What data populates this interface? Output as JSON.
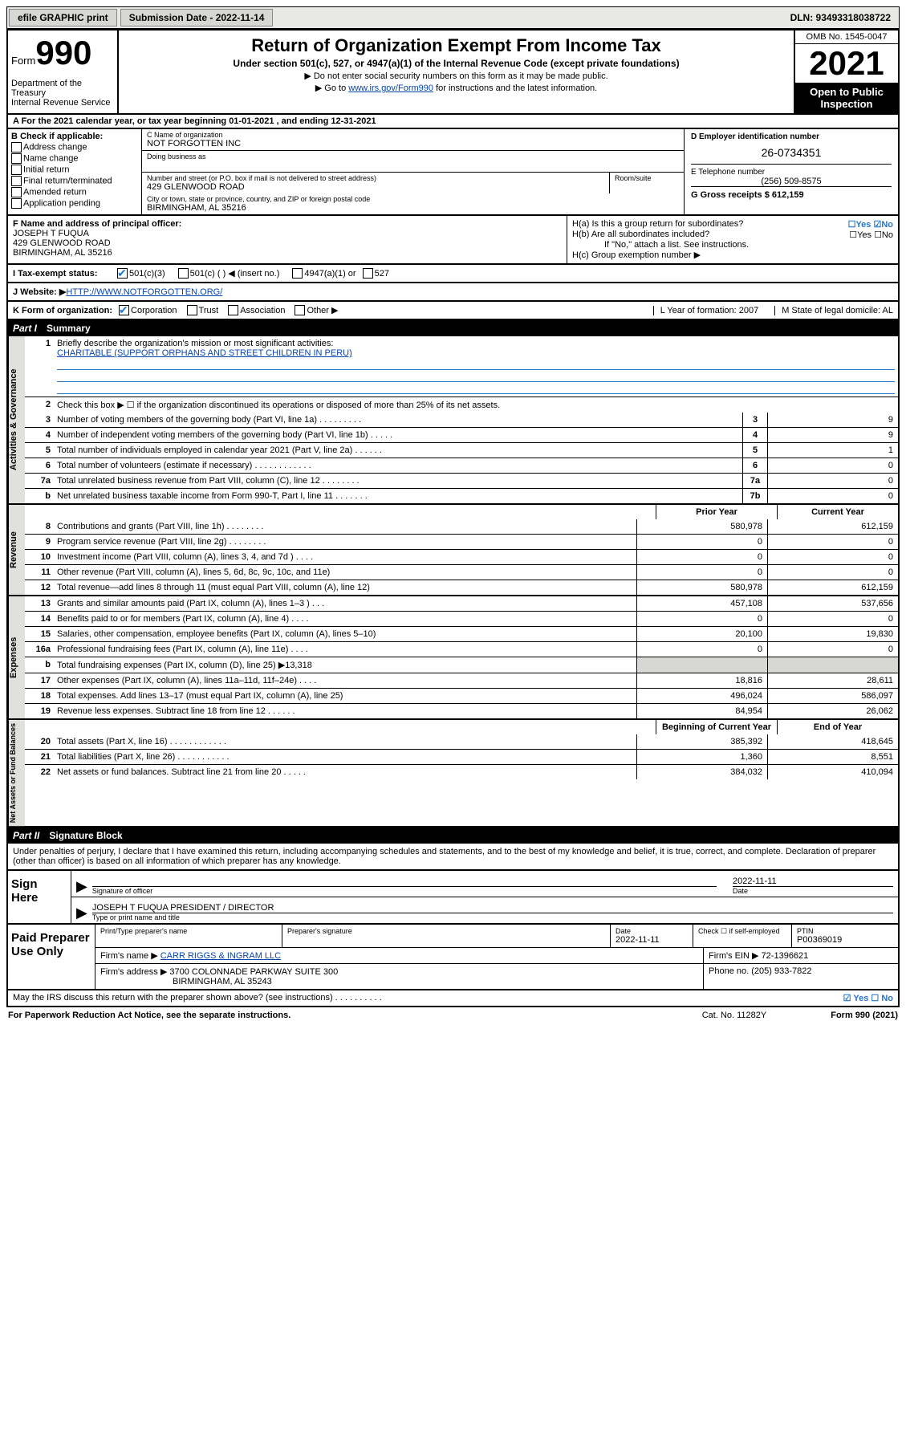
{
  "topbar": {
    "efile": "efile GRAPHIC print",
    "submission_label": "Submission Date - 2022-11-14",
    "dln": "DLN: 93493318038722"
  },
  "header": {
    "form_word": "Form",
    "form_num": "990",
    "dept": "Department of the Treasury\nInternal Revenue Service",
    "title": "Return of Organization Exempt From Income Tax",
    "subtitle": "Under section 501(c), 527, or 4947(a)(1) of the Internal Revenue Code (except private foundations)",
    "note1": "▶ Do not enter social security numbers on this form as it may be made public.",
    "note2_pre": "▶ Go to ",
    "note2_link": "www.irs.gov/Form990",
    "note2_post": " for instructions and the latest information.",
    "omb": "OMB No. 1545-0047",
    "year": "2021",
    "inspect": "Open to Public Inspection"
  },
  "lineA": "A For the 2021 calendar year, or tax year beginning 01-01-2021   , and ending 12-31-2021",
  "colB": {
    "head": "B Check if applicable:",
    "opts": [
      "Address change",
      "Name change",
      "Initial return",
      "Final return/terminated",
      "Amended return",
      "Application pending"
    ]
  },
  "colC": {
    "name_label": "C Name of organization",
    "name": "NOT FORGOTTEN INC",
    "dba_label": "Doing business as",
    "street_label": "Number and street (or P.O. box if mail is not delivered to street address)",
    "room_label": "Room/suite",
    "street": "429 GLENWOOD ROAD",
    "city_label": "City or town, state or province, country, and ZIP or foreign postal code",
    "city": "BIRMINGHAM, AL  35216"
  },
  "colD": {
    "ein_label": "D Employer identification number",
    "ein": "26-0734351",
    "phone_label": "E Telephone number",
    "phone": "(256) 509-8575",
    "gross_label": "G Gross receipts $ ",
    "gross": "612,159"
  },
  "secF": {
    "label": "F Name and address of principal officer:",
    "name": "JOSEPH T FUQUA",
    "addr1": "429 GLENWOOD ROAD",
    "addr2": "BIRMINGHAM, AL  35216",
    "ha": "H(a)  Is this a group return for subordinates?",
    "ha_ans": "☐Yes  ☑No",
    "hb": "H(b)  Are all subordinates included?",
    "hb_ans": "☐Yes  ☐No",
    "hb_note": "If \"No,\" attach a list. See instructions.",
    "hc": "H(c)  Group exemption number ▶"
  },
  "secI": {
    "label": "I   Tax-exempt status:",
    "o1": "501(c)(3)",
    "o2": "501(c) (  ) ◀ (insert no.)",
    "o3": "4947(a)(1) or",
    "o4": "527"
  },
  "secJ": {
    "label": "J   Website: ▶  ",
    "url": "HTTP://WWW.NOTFORGOTTEN.ORG/"
  },
  "secK": {
    "label": "K Form of organization:",
    "o1": "Corporation",
    "o2": "Trust",
    "o3": "Association",
    "o4": "Other ▶",
    "l": "L Year of formation: 2007",
    "m": "M State of legal domicile: AL"
  },
  "part1": {
    "header": "Summary",
    "part_label": "Part I",
    "q1": "Briefly describe the organization's mission or most significant activities:",
    "mission": "CHARITABLE (SUPPORT ORPHANS AND STREET CHILDREN IN PERU)",
    "q2": "Check this box ▶ ☐  if the organization discontinued its operations or disposed of more than 25% of its net assets.",
    "rows_gov": [
      {
        "n": "3",
        "t": "Number of voting members of the governing body (Part VI, line 1a)   .    .    .    .    .    .    .    .    .",
        "b": "3",
        "v": "9"
      },
      {
        "n": "4",
        "t": "Number of independent voting members of the governing body (Part VI, line 1b)   .    .    .    .    .",
        "b": "4",
        "v": "9"
      },
      {
        "n": "5",
        "t": "Total number of individuals employed in calendar year 2021 (Part V, line 2a)   .    .    .    .    .    .",
        "b": "5",
        "v": "1"
      },
      {
        "n": "6",
        "t": "Total number of volunteers (estimate if necessary)   .    .    .    .    .    .    .    .    .    .    .    .",
        "b": "6",
        "v": "0"
      },
      {
        "n": "7a",
        "t": "Total unrelated business revenue from Part VIII, column (C), line 12   .    .    .    .    .    .    .    .",
        "b": "7a",
        "v": "0"
      },
      {
        "n": "b",
        "t": "Net unrelated business taxable income from Form 990-T, Part I, line 11   .    .    .    .    .    .    .",
        "b": "7b",
        "v": "0"
      }
    ],
    "col_headers": {
      "py": "Prior Year",
      "cy": "Current Year"
    },
    "rows_rev": [
      {
        "n": "8",
        "t": "Contributions and grants (Part VIII, line 1h)   .    .    .    .    .    .    .    .",
        "py": "580,978",
        "cy": "612,159"
      },
      {
        "n": "9",
        "t": "Program service revenue (Part VIII, line 2g)   .    .    .    .    .    .    .    .",
        "py": "0",
        "cy": "0"
      },
      {
        "n": "10",
        "t": "Investment income (Part VIII, column (A), lines 3, 4, and 7d )   .    .    .    .",
        "py": "0",
        "cy": "0"
      },
      {
        "n": "11",
        "t": "Other revenue (Part VIII, column (A), lines 5, 6d, 8c, 9c, 10c, and 11e)",
        "py": "0",
        "cy": "0"
      },
      {
        "n": "12",
        "t": "Total revenue—add lines 8 through 11 (must equal Part VIII, column (A), line 12)",
        "py": "580,978",
        "cy": "612,159"
      }
    ],
    "rows_exp": [
      {
        "n": "13",
        "t": "Grants and similar amounts paid (Part IX, column (A), lines 1–3 )   .    .    .",
        "py": "457,108",
        "cy": "537,656"
      },
      {
        "n": "14",
        "t": "Benefits paid to or for members (Part IX, column (A), line 4)   .    .    .    .",
        "py": "0",
        "cy": "0"
      },
      {
        "n": "15",
        "t": "Salaries, other compensation, employee benefits (Part IX, column (A), lines 5–10)",
        "py": "20,100",
        "cy": "19,830"
      },
      {
        "n": "16a",
        "t": "Professional fundraising fees (Part IX, column (A), line 11e)   .    .    .    .",
        "py": "0",
        "cy": "0"
      },
      {
        "n": "b",
        "t": "Total fundraising expenses (Part IX, column (D), line 25) ▶13,318",
        "py": "",
        "cy": "",
        "shade": true
      },
      {
        "n": "17",
        "t": "Other expenses (Part IX, column (A), lines 11a–11d, 11f–24e)   .    .    .    .",
        "py": "18,816",
        "cy": "28,611"
      },
      {
        "n": "18",
        "t": "Total expenses. Add lines 13–17 (must equal Part IX, column (A), line 25)",
        "py": "496,024",
        "cy": "586,097"
      },
      {
        "n": "19",
        "t": "Revenue less expenses. Subtract line 18 from line 12   .    .    .    .    .    .",
        "py": "84,954",
        "cy": "26,062"
      }
    ],
    "na_headers": {
      "b": "Beginning of Current Year",
      "e": "End of Year"
    },
    "rows_na": [
      {
        "n": "20",
        "t": "Total assets (Part X, line 16)   .    .    .    .    .    .    .    .    .    .    .    .",
        "py": "385,392",
        "cy": "418,645"
      },
      {
        "n": "21",
        "t": "Total liabilities (Part X, line 26)   .    .    .    .    .    .    .    .    .    .    .",
        "py": "1,360",
        "cy": "8,551"
      },
      {
        "n": "22",
        "t": "Net assets or fund balances. Subtract line 21 from line 20   .    .    .    .    .",
        "py": "384,032",
        "cy": "410,094"
      }
    ],
    "vtabs": {
      "gov": "Activities & Governance",
      "rev": "Revenue",
      "exp": "Expenses",
      "na": "Net Assets or Fund Balances"
    }
  },
  "part2": {
    "part_label": "Part II",
    "header": "Signature Block",
    "perjury": "Under penalties of perjury, I declare that I have examined this return, including accompanying schedules and statements, and to the best of my knowledge and belief, it is true, correct, and complete. Declaration of preparer (other than officer) is based on all information of which preparer has any knowledge.",
    "sign_here": "Sign Here",
    "sig_officer_label": "Signature of officer",
    "sig_date": "2022-11-11",
    "date_label": "Date",
    "officer": "JOSEPH T FUQUA  PRESIDENT / DIRECTOR",
    "officer_label": "Type or print name and title",
    "paid": "Paid Preparer Use Only",
    "prep_name_label": "Print/Type preparer's name",
    "prep_sig_label": "Preparer's signature",
    "prep_date_label": "Date",
    "prep_date": "2022-11-11",
    "self_emp": "Check ☐ if self-employed",
    "ptin_label": "PTIN",
    "ptin": "P00369019",
    "firm_name_label": "Firm's name      ▶ ",
    "firm_name": "CARR RIGGS & INGRAM LLC",
    "firm_ein_label": "Firm's EIN ▶ ",
    "firm_ein": "72-1396621",
    "firm_addr_label": "Firm's address ▶ ",
    "firm_addr1": "3700 COLONNADE PARKWAY SUITE 300",
    "firm_addr2": "BIRMINGHAM, AL  35243",
    "firm_phone_label": "Phone no. ",
    "firm_phone": "(205) 933-7822",
    "may_irs": "May the IRS discuss this return with the preparer shown above? (see instructions)   .    .    .    .    .    .    .    .    .    .",
    "may_ans": "☑ Yes  ☐ No"
  },
  "footer": {
    "pra": "For Paperwork Reduction Act Notice, see the separate instructions.",
    "cat": "Cat. No. 11282Y",
    "form": "Form 990 (2021)"
  }
}
